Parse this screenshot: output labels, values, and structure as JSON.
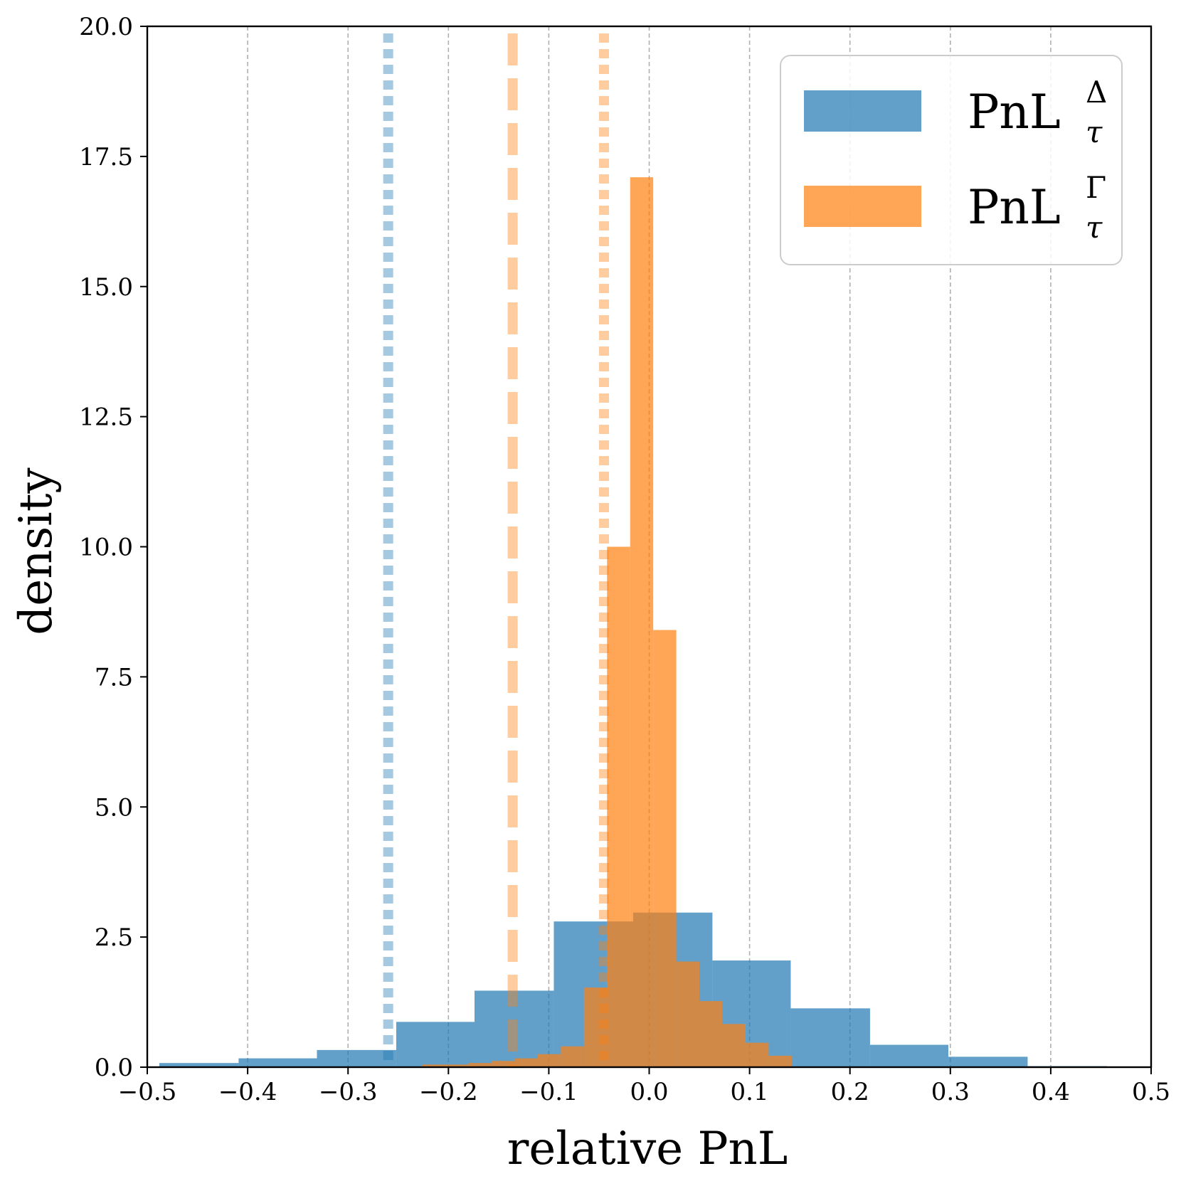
{
  "chart_data": {
    "type": "bar",
    "xlabel": "relative PnL",
    "ylabel": "density",
    "xlim": [
      -0.5,
      0.5
    ],
    "ylim": [
      0,
      20
    ],
    "xticks": [
      -0.5,
      -0.4,
      -0.3,
      -0.2,
      -0.1,
      0.0,
      0.1,
      0.2,
      0.3,
      0.4,
      0.5
    ],
    "xtick_labels": [
      "−0.5",
      "−0.4",
      "−0.3",
      "−0.2",
      "−0.1",
      "0.0",
      "0.1",
      "0.2",
      "0.3",
      "0.4",
      "0.5"
    ],
    "yticks": [
      0,
      2.5,
      5,
      7.5,
      10,
      12.5,
      15,
      17.5,
      20
    ],
    "ytick_labels": [
      "0.0",
      "2.5",
      "5.0",
      "7.5",
      "10.0",
      "12.5",
      "15.0",
      "17.5",
      "20.0"
    ],
    "grid": "vertical dashed at x ticks",
    "legend_position": "top-right",
    "series": [
      {
        "name": "PnL",
        "name_sup": "Δ",
        "name_sub": "τ",
        "color": "#1f77b4",
        "opacity": 0.7,
        "bin_edges": [
          -0.488,
          -0.409,
          -0.331,
          -0.252,
          -0.174,
          -0.095,
          -0.016,
          0.063,
          0.141,
          0.22,
          0.298,
          0.377,
          0.456
        ],
        "density": [
          0.08,
          0.17,
          0.33,
          0.87,
          1.47,
          2.8,
          2.97,
          2.05,
          1.13,
          0.43,
          0.2,
          0.02
        ]
      },
      {
        "name": "PnL",
        "name_sup": "Γ",
        "name_sub": "τ",
        "color": "#ff7f0e",
        "opacity": 0.7,
        "bin_edges": [
          -0.226,
          -0.203,
          -0.18,
          -0.157,
          -0.134,
          -0.111,
          -0.088,
          -0.065,
          -0.042,
          -0.019,
          0.004,
          0.027,
          0.05,
          0.073,
          0.096,
          0.119,
          0.142
        ],
        "density": [
          0.05,
          0.05,
          0.08,
          0.12,
          0.17,
          0.25,
          0.4,
          1.53,
          10.0,
          17.1,
          8.4,
          2.03,
          1.27,
          0.83,
          0.47,
          0.22
        ]
      }
    ],
    "reference_lines": [
      {
        "x": -0.26,
        "style": "dotted",
        "color": "#1f77b4"
      },
      {
        "x": -0.136,
        "style": "dashed",
        "color": "#ff7f0e"
      },
      {
        "x": -0.045,
        "style": "dotted",
        "color": "#ff7f0e"
      }
    ]
  }
}
